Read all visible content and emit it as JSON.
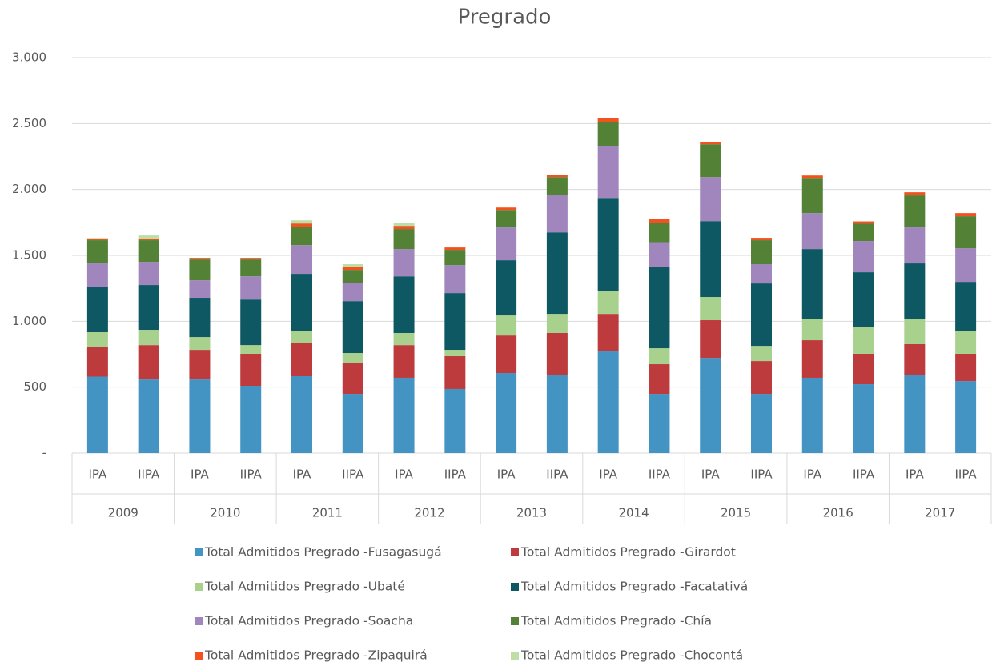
{
  "chart_data": {
    "type": "stacked_bar",
    "title": "Pregrado",
    "categories": [
      "IPA",
      "IIPA",
      "IPA",
      "IIPA",
      "IPA",
      "IIPA",
      "IPA",
      "IIPA",
      "IPA",
      "IIPA",
      "IPA",
      "IIPA",
      "IPA",
      "IIPA",
      "IPA",
      "IIPA",
      "IPA",
      "IIPA"
    ],
    "groups": [
      "2009",
      "2010",
      "2011",
      "2012",
      "2013",
      "2014",
      "2015",
      "2016",
      "2017"
    ],
    "ylim": [
      0,
      3000
    ],
    "yticks": [
      {
        "value": 0,
        "label": "-"
      },
      500,
      {
        "value": 1000,
        "label": "1.000"
      },
      {
        "value": 1500,
        "label": "1.500"
      },
      {
        "value": 2000,
        "label": "2.000"
      },
      {
        "value": 2500,
        "label": "2.500"
      },
      {
        "value": 3000,
        "label": "3.000"
      }
    ],
    "grid": true,
    "series": [
      {
        "name": "Total Admitidos Pregrado -Fusagasugá",
        "color": "#4393c3",
        "values": [
          580,
          558,
          558,
          510,
          583,
          449,
          571,
          486,
          607,
          589,
          771,
          449,
          722,
          449,
          571,
          522,
          589,
          546
        ]
      },
      {
        "name": "Total Admitidos Pregrado -Girardot",
        "color": "#be3b3d",
        "values": [
          227,
          261,
          225,
          243,
          249,
          237,
          248,
          249,
          285,
          322,
          285,
          225,
          286,
          249,
          285,
          231,
          237,
          207
        ]
      },
      {
        "name": "Total Admitidos Pregrado -Ubaté",
        "color": "#a9d18e",
        "values": [
          110,
          116,
          97,
          66,
          97,
          73,
          92,
          48,
          152,
          145,
          176,
          121,
          176,
          115,
          164,
          206,
          194,
          170
        ]
      },
      {
        "name": "Total Admitidos Pregrado -Facatativá",
        "color": "#0e5864",
        "values": [
          345,
          340,
          298,
          346,
          431,
          394,
          430,
          431,
          419,
          619,
          704,
          618,
          576,
          474,
          528,
          413,
          419,
          376
        ]
      },
      {
        "name": "Total Admitidos Pregrado -Soacha",
        "color": "#a186bd",
        "values": [
          177,
          176,
          133,
          176,
          218,
          140,
          207,
          212,
          249,
          286,
          395,
          187,
          334,
          146,
          273,
          237,
          273,
          255
        ]
      },
      {
        "name": "Total Admitidos Pregrado -Chía",
        "color": "#538135",
        "values": [
          176,
          164,
          158,
          128,
          140,
          97,
          152,
          116,
          133,
          133,
          182,
          145,
          249,
          182,
          267,
          131,
          243,
          243
        ]
      },
      {
        "name": "Total Admitidos Pregrado -Zipaquirá",
        "color": "#f2521f",
        "values": [
          12,
          12,
          12,
          12,
          24,
          24,
          24,
          18,
          18,
          18,
          30,
          30,
          18,
          18,
          18,
          18,
          24,
          24
        ]
      },
      {
        "name": "Total Admitidos Pregrado -Chocontá",
        "color": "#bcdfa6",
        "values": [
          5,
          24,
          0,
          0,
          24,
          19,
          24,
          0,
          0,
          0,
          0,
          0,
          0,
          0,
          0,
          0,
          0,
          0
        ]
      }
    ]
  }
}
